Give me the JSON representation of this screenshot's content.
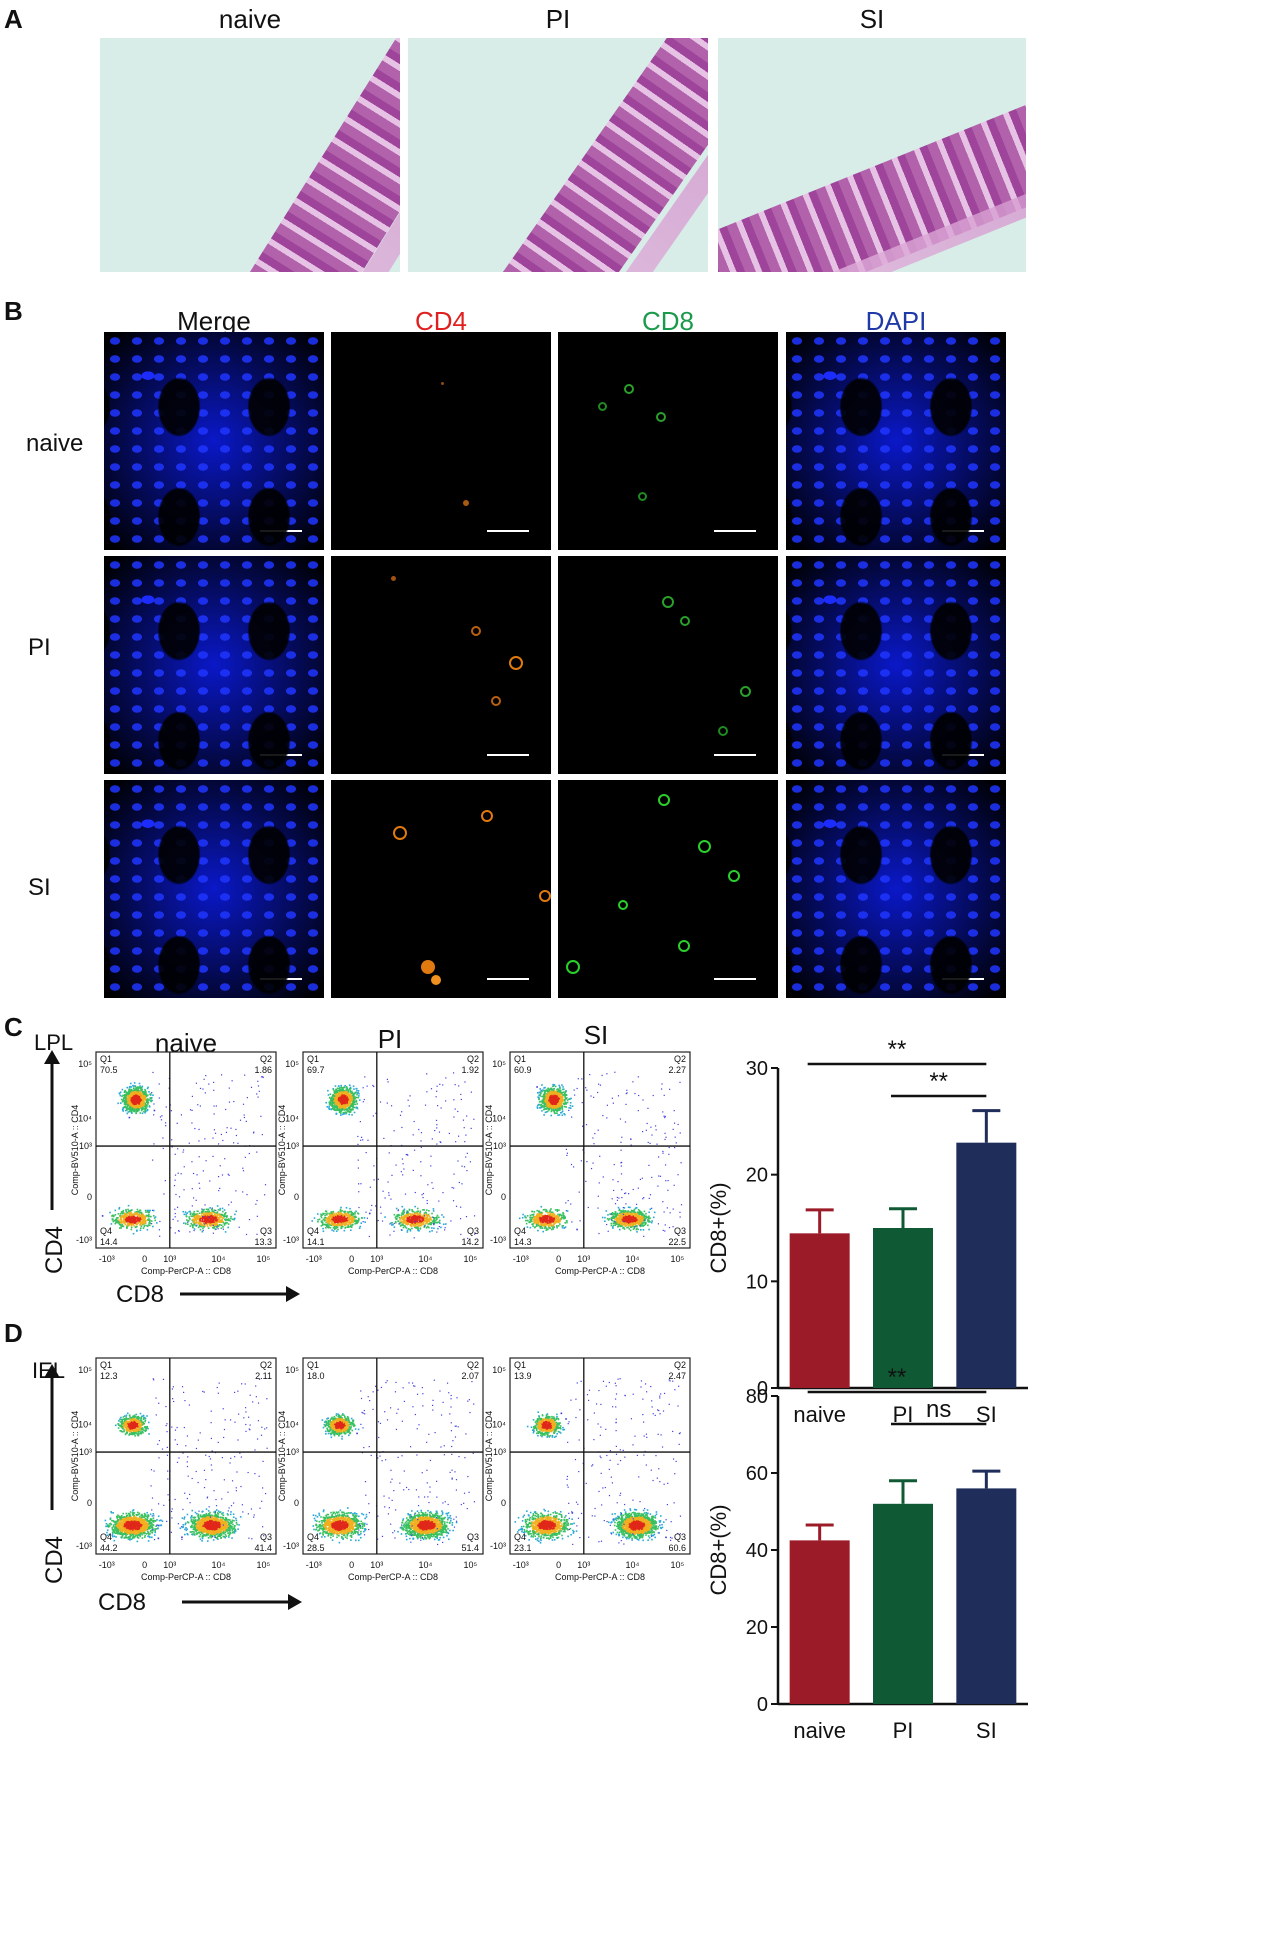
{
  "panelA": {
    "letter": "A",
    "titles": [
      "naive",
      "PI",
      "SI"
    ]
  },
  "panelB": {
    "letter": "B",
    "column_titles": [
      {
        "text": "Merge",
        "color": "#111111"
      },
      {
        "text": "CD4",
        "color": "#e02020"
      },
      {
        "text": "CD8",
        "color": "#1a9a4a"
      },
      {
        "text": "DAPI",
        "color": "#1f3aa8"
      }
    ],
    "row_labels": [
      "naive",
      "PI",
      "SI"
    ]
  },
  "panelC": {
    "letter": "C",
    "cell_type": "LPL",
    "group_titles": [
      "naive",
      "PI",
      "SI"
    ],
    "axis_y_big": "CD4",
    "axis_x_big": "CD8",
    "flow_x_label": "Comp-PerCP-A :: CD8",
    "flow_y_label": "Comp-BV510-A :: CD4",
    "x_ticks": [
      "-10³",
      "0",
      "10³",
      "10⁴",
      "10⁵"
    ],
    "y_ticks": [
      "10⁵",
      "10⁴",
      "10³",
      "0",
      "-10³"
    ],
    "plots": [
      {
        "Q1": "70.5",
        "Q2": "1.86",
        "Q3": "13.3",
        "Q4": "14.4"
      },
      {
        "Q1": "69.7",
        "Q2": "1.92",
        "Q3": "14.2",
        "Q4": "14.1"
      },
      {
        "Q1": "60.9",
        "Q2": "2.27",
        "Q3": "22.5",
        "Q4": "14.3"
      }
    ],
    "quad_names": [
      "Q1",
      "Q2",
      "Q3",
      "Q4"
    ]
  },
  "panelD": {
    "letter": "D",
    "cell_type": "IEL",
    "axis_y_big": "CD4",
    "axis_x_big": "CD8",
    "flow_x_label": "Comp-PerCP-A :: CD8",
    "flow_y_label": "Comp-BV510-A :: CD4",
    "x_ticks": [
      "-10³",
      "0",
      "10³",
      "10⁴",
      "10⁵"
    ],
    "y_ticks": [
      "10⁵",
      "10⁴",
      "10³",
      "0",
      "-10³"
    ],
    "plots": [
      {
        "Q1": "12.3",
        "Q2": "2.11",
        "Q3": "41.4",
        "Q4": "44.2"
      },
      {
        "Q1": "18.0",
        "Q2": "2.07",
        "Q3": "51.4",
        "Q4": "28.5"
      },
      {
        "Q1": "13.9",
        "Q2": "2.47",
        "Q3": "60.6",
        "Q4": "23.1"
      }
    ],
    "quad_names": [
      "Q1",
      "Q2",
      "Q3",
      "Q4"
    ]
  },
  "chart_data": [
    {
      "type": "bar",
      "categories": [
        "naive",
        "PI",
        "SI"
      ],
      "values": [
        14.5,
        15.0,
        23.0
      ],
      "errors": [
        2.2,
        1.8,
        3.0
      ],
      "colors": [
        "#9b1c28",
        "#0f5a34",
        "#1f2d5a"
      ],
      "ylabel": "CD8+(%)",
      "ylim": [
        0,
        30
      ],
      "yticks": [
        0,
        10,
        20,
        30
      ],
      "significance": [
        {
          "from": 0,
          "to": 2,
          "label": "**"
        },
        {
          "from": 1,
          "to": 2,
          "label": "**"
        }
      ]
    },
    {
      "type": "bar",
      "categories": [
        "naive",
        "PI",
        "SI"
      ],
      "values": [
        42.5,
        52.0,
        56.0
      ],
      "errors": [
        4.0,
        6.0,
        4.5
      ],
      "colors": [
        "#9b1c28",
        "#0f5a34",
        "#1f2d5a"
      ],
      "ylabel": "CD8+(%)",
      "ylim": [
        0,
        80
      ],
      "yticks": [
        0,
        20,
        40,
        60,
        80
      ],
      "significance": [
        {
          "from": 0,
          "to": 2,
          "label": "**"
        },
        {
          "from": 1,
          "to": 2,
          "label": "ns"
        }
      ]
    }
  ]
}
